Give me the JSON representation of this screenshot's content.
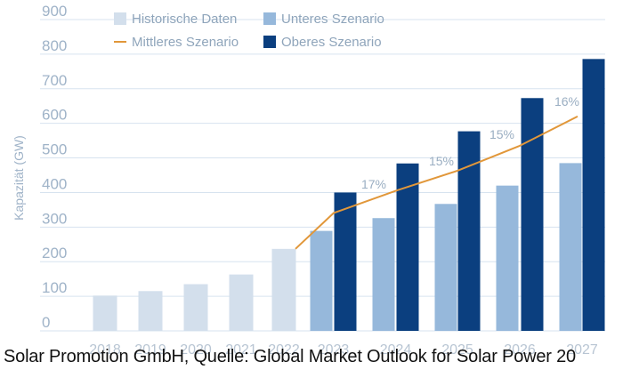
{
  "chart_data": {
    "type": "bar",
    "ylabel": "Kapazität (GW)",
    "ylim": [
      0,
      900
    ],
    "yticks": [
      0,
      100,
      200,
      300,
      400,
      500,
      600,
      700,
      800,
      900
    ],
    "grid": true,
    "legend_position": "top-left",
    "categories": [
      "2018",
      "2019",
      "2020",
      "2021",
      "2022",
      "2023",
      "2024",
      "2025",
      "2026",
      "2027"
    ],
    "series": [
      {
        "name": "Historische Daten",
        "type": "bar",
        "color": "#d3dfec",
        "values": [
          102,
          115,
          135,
          163,
          237,
          null,
          null,
          null,
          null,
          null
        ]
      },
      {
        "name": "Unteres Szenario",
        "type": "bar",
        "color": "#96b8db",
        "values": [
          null,
          null,
          null,
          null,
          null,
          289,
          326,
          367,
          420,
          485
        ]
      },
      {
        "name": "Oberes Szenario",
        "type": "bar",
        "color": "#0b3f7f",
        "values": [
          null,
          null,
          null,
          null,
          null,
          400,
          484,
          577,
          673,
          786
        ]
      },
      {
        "name": "Mittleres Szenario",
        "type": "line",
        "color": "#e1973a",
        "values": [
          null,
          null,
          null,
          null,
          237,
          341,
          406,
          463,
          534,
          620
        ]
      }
    ],
    "annotations": [
      {
        "category": "2024",
        "text": "17%"
      },
      {
        "category": "2025",
        "text": "15%"
      },
      {
        "category": "2026",
        "text": "15%"
      },
      {
        "category": "2027",
        "text": "16%"
      }
    ]
  },
  "caption": "Solar Promotion GmbH, Quelle: Global Market Outlook for Solar Power 20"
}
